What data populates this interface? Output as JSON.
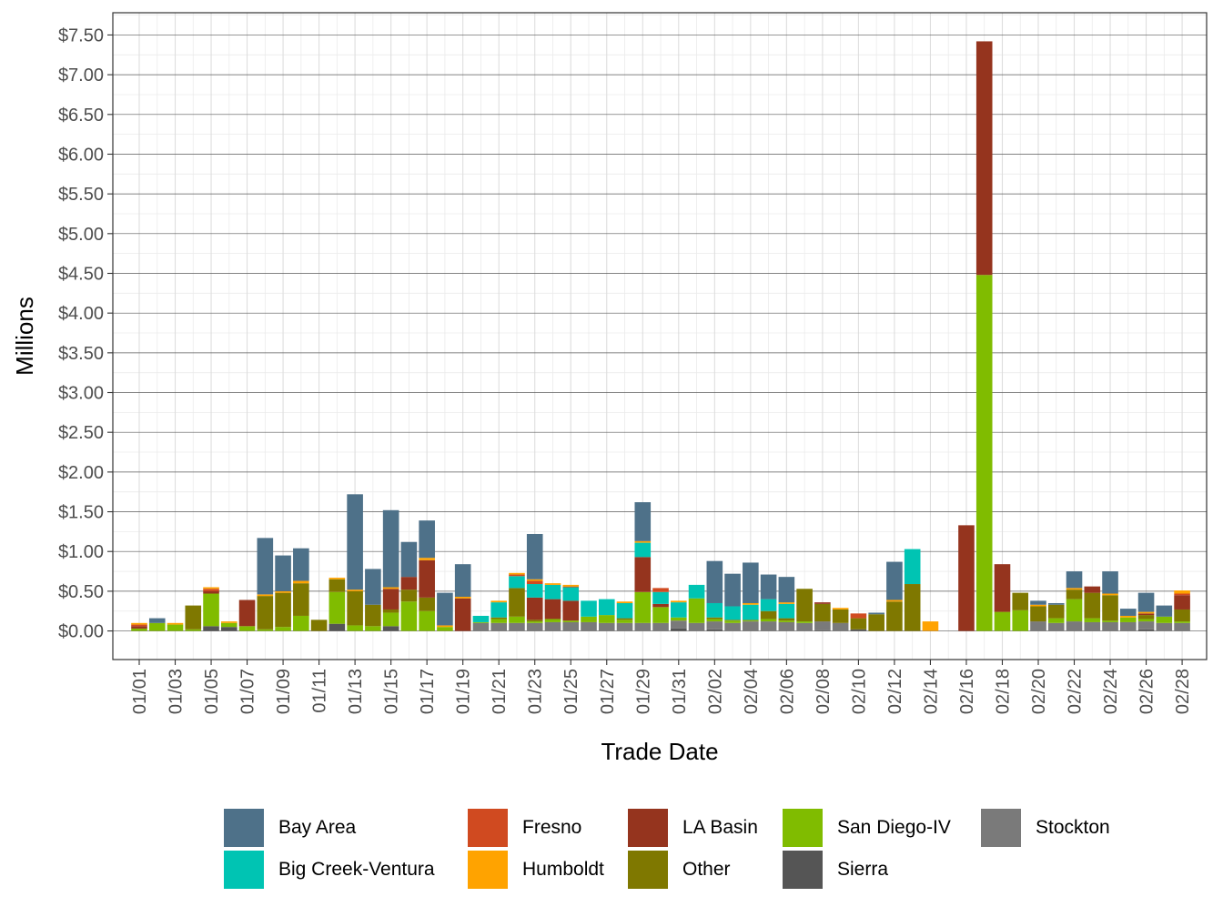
{
  "chart_data": {
    "type": "bar",
    "stacked": true,
    "xlabel": "Trade Date",
    "ylabel": "Millions",
    "ylim": [
      -0.36,
      7.78
    ],
    "y_ticks": [
      "$0.00",
      "$0.50",
      "$1.00",
      "$1.50",
      "$2.00",
      "$2.50",
      "$3.00",
      "$3.50",
      "$4.00",
      "$4.50",
      "$5.00",
      "$5.50",
      "$6.00",
      "$6.50",
      "$7.00",
      "$7.50"
    ],
    "y_tick_values": [
      0,
      0.5,
      1,
      1.5,
      2,
      2.5,
      3,
      3.5,
      4,
      4.5,
      5,
      5.5,
      6,
      6.5,
      7,
      7.5
    ],
    "grid": true,
    "legend_position": "bottom",
    "x_tick_labels": [
      "01/01",
      "01/03",
      "01/05",
      "01/07",
      "01/09",
      "01/11",
      "01/13",
      "01/15",
      "01/17",
      "01/19",
      "01/21",
      "01/23",
      "01/25",
      "01/27",
      "01/29",
      "01/31",
      "02/02",
      "02/04",
      "02/06",
      "02/08",
      "02/10",
      "02/12",
      "02/14",
      "02/16",
      "02/18",
      "02/20",
      "02/22",
      "02/24",
      "02/26",
      "02/28"
    ],
    "categories": [
      "01/01",
      "01/02",
      "01/03",
      "01/04",
      "01/05",
      "01/06",
      "01/07",
      "01/08",
      "01/09",
      "01/10",
      "01/11",
      "01/12",
      "01/13",
      "01/14",
      "01/15",
      "01/16",
      "01/17",
      "01/18",
      "01/19",
      "01/20",
      "01/21",
      "01/22",
      "01/23",
      "01/24",
      "01/25",
      "01/26",
      "01/27",
      "01/28",
      "01/29",
      "01/30",
      "01/31",
      "02/01",
      "02/02",
      "02/03",
      "02/04",
      "02/05",
      "02/06",
      "02/07",
      "02/08",
      "02/09",
      "02/10",
      "02/11",
      "02/12",
      "02/13",
      "02/14",
      "02/15",
      "02/16",
      "02/17",
      "02/18",
      "02/19",
      "02/20",
      "02/21",
      "02/22",
      "02/23",
      "02/24",
      "02/25",
      "02/26",
      "02/27",
      "02/28"
    ],
    "series": [
      {
        "name": "Sierra",
        "color": "#555555",
        "values": [
          0,
          0,
          0,
          0,
          0.06,
          0.05,
          0,
          0,
          0,
          0,
          0,
          0.09,
          0,
          0,
          0.06,
          0,
          0,
          0,
          0,
          0,
          0,
          0,
          0,
          0,
          0,
          0,
          0,
          0,
          0,
          0,
          0.03,
          0,
          0.02,
          0,
          0,
          0,
          0,
          0,
          0.01,
          0,
          0.02,
          0,
          0,
          0,
          0,
          0,
          0,
          0,
          0,
          0,
          0,
          0,
          0,
          0,
          0,
          0,
          0.02,
          0,
          0
        ]
      },
      {
        "name": "Stockton",
        "color": "#7a7a7a",
        "values": [
          0,
          0,
          0,
          0,
          0,
          0,
          0,
          0,
          0,
          0,
          0,
          0,
          0,
          0,
          0,
          0,
          0,
          0,
          0,
          0.1,
          0.1,
          0.1,
          0.1,
          0.11,
          0.11,
          0.11,
          0.1,
          0.1,
          0.1,
          0.1,
          0.1,
          0.1,
          0.1,
          0.1,
          0.12,
          0.12,
          0.11,
          0.1,
          0.11,
          0.1,
          0,
          0,
          0,
          0,
          0,
          0,
          0,
          0,
          0,
          0,
          0.12,
          0.1,
          0.12,
          0.11,
          0.11,
          0.11,
          0.1,
          0.1,
          0.1
        ]
      },
      {
        "name": "San Diego-IV",
        "color": "#80bc00",
        "values": [
          0.03,
          0.1,
          0.08,
          0.02,
          0.41,
          0.05,
          0.06,
          0.02,
          0.05,
          0.19,
          0,
          0.4,
          0.07,
          0.06,
          0.17,
          0.37,
          0.25,
          0.05,
          0,
          0.01,
          0.05,
          0.08,
          0.02,
          0.04,
          0.02,
          0.07,
          0.1,
          0.04,
          0.39,
          0.2,
          0.04,
          0.31,
          0.03,
          0.03,
          0.01,
          0.03,
          0.02,
          0.02,
          0,
          0,
          0,
          0,
          0,
          0,
          0,
          0,
          0,
          4.48,
          0.24,
          0.26,
          0,
          0.06,
          0.28,
          0.05,
          0.02,
          0.06,
          0.03,
          0.08,
          0.02
        ]
      },
      {
        "name": "Other",
        "color": "#7f7800",
        "values": [
          0,
          0,
          0,
          0.3,
          0,
          0,
          0,
          0.42,
          0.43,
          0.41,
          0.14,
          0.16,
          0.43,
          0.27,
          0.04,
          0.15,
          0.17,
          0,
          0,
          0,
          0.02,
          0.36,
          0.02,
          0,
          0,
          0,
          0,
          0.02,
          0,
          0,
          0,
          0,
          0.02,
          0.01,
          0.01,
          0.1,
          0.03,
          0.41,
          0.22,
          0.17,
          0.14,
          0.21,
          0.37,
          0.59,
          0,
          0,
          0,
          0,
          0,
          0.22,
          0.19,
          0.17,
          0.12,
          0.32,
          0.32,
          0,
          0.05,
          0,
          0.15
        ]
      },
      {
        "name": "LA Basin",
        "color": "#95341e",
        "values": [
          0.03,
          0,
          0,
          0,
          0.03,
          0,
          0.33,
          0,
          0,
          0,
          0,
          0,
          0,
          0,
          0.26,
          0.16,
          0.47,
          0,
          0.41,
          0,
          0,
          0,
          0.28,
          0.25,
          0.25,
          0,
          0,
          0,
          0.44,
          0.04,
          0,
          0,
          0,
          0,
          0,
          0,
          0,
          0,
          0.02,
          0,
          0,
          0,
          0,
          0,
          0,
          0,
          1.33,
          2.94,
          0.6,
          0,
          0,
          0,
          0,
          0.08,
          0,
          0,
          0.02,
          0,
          0.18
        ]
      },
      {
        "name": "Big Creek-Ventura",
        "color": "#00c4b3",
        "values": [
          0,
          0,
          0,
          0,
          0,
          0,
          0,
          0,
          0,
          0,
          0,
          0,
          0,
          0,
          0,
          0,
          0,
          0,
          0,
          0.08,
          0.19,
          0.15,
          0.17,
          0.18,
          0.17,
          0.2,
          0.2,
          0.19,
          0.18,
          0.15,
          0.19,
          0.17,
          0.18,
          0.17,
          0.19,
          0.15,
          0.18,
          0,
          0,
          0,
          0,
          0,
          0,
          0.44,
          0,
          0,
          0,
          0,
          0,
          0,
          0,
          0,
          0,
          0,
          0,
          0,
          0,
          0,
          0
        ]
      },
      {
        "name": "Fresno",
        "color": "#d04a20",
        "values": [
          0.02,
          0,
          0,
          0,
          0.03,
          0,
          0,
          0,
          0,
          0,
          0,
          0,
          0,
          0,
          0,
          0,
          0,
          0,
          0,
          0,
          0,
          0.02,
          0.04,
          0,
          0.01,
          0,
          0,
          0,
          0,
          0.05,
          0,
          0,
          0,
          0,
          0,
          0,
          0,
          0,
          0,
          0,
          0.06,
          0,
          0,
          0,
          0,
          0,
          0,
          0,
          0,
          0,
          0,
          0,
          0,
          0,
          0,
          0,
          0,
          0,
          0.02
        ]
      },
      {
        "name": "Humboldt",
        "color": "#ffa300",
        "values": [
          0.02,
          0,
          0.02,
          0,
          0.02,
          0.02,
          0,
          0.02,
          0.02,
          0.03,
          0,
          0.02,
          0.02,
          0,
          0.02,
          0,
          0.03,
          0.02,
          0.02,
          0,
          0.02,
          0.02,
          0.02,
          0.02,
          0.02,
          0,
          0,
          0.02,
          0.02,
          0,
          0.02,
          0,
          0,
          0,
          0.02,
          0,
          0.02,
          0,
          0,
          0.02,
          0,
          0,
          0.02,
          0,
          0.12,
          0,
          0,
          0,
          0,
          0,
          0.02,
          0,
          0.02,
          0,
          0.02,
          0.02,
          0.02,
          0,
          0.04
        ]
      },
      {
        "name": "Bay Area",
        "color": "#4e7189",
        "values": [
          0,
          0.06,
          0,
          0,
          0,
          0,
          0,
          0.71,
          0.45,
          0.41,
          0,
          0,
          1.2,
          0.45,
          0.97,
          0.44,
          0.47,
          0.41,
          0.41,
          0,
          0,
          0,
          0.57,
          0,
          0,
          0,
          0,
          0,
          0.49,
          0,
          0,
          0,
          0.53,
          0.41,
          0.51,
          0.31,
          0.32,
          0,
          0,
          0,
          0,
          0.02,
          0.48,
          0,
          0,
          0,
          0,
          0,
          0,
          0,
          0.05,
          0.02,
          0.21,
          0,
          0.28,
          0.09,
          0.24,
          0.14,
          0
        ]
      }
    ]
  },
  "legend": {
    "items": [
      {
        "label": "Bay Area",
        "color": "#4e7189"
      },
      {
        "label": "Big Creek-Ventura",
        "color": "#00c4b3"
      },
      {
        "label": "Fresno",
        "color": "#d04a20"
      },
      {
        "label": "Humboldt",
        "color": "#ffa300"
      },
      {
        "label": "LA Basin",
        "color": "#95341e"
      },
      {
        "label": "Other",
        "color": "#7f7800"
      },
      {
        "label": "San Diego-IV",
        "color": "#80bc00"
      },
      {
        "label": "Sierra",
        "color": "#555555"
      },
      {
        "label": "Stockton",
        "color": "#7a7a7a"
      }
    ]
  }
}
